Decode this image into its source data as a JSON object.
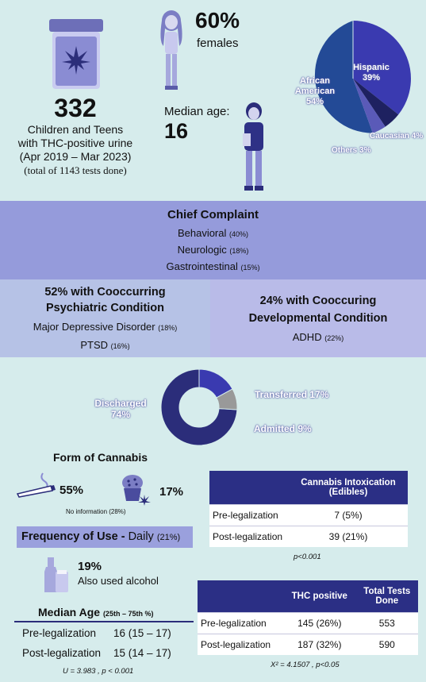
{
  "demographics": {
    "count": "332",
    "count_line1": "Children and Teens",
    "count_line2": "with THC-positive urine",
    "count_line3": "(Apr 2019 – Mar 2023)",
    "count_line4": "(total of 1143 tests done)",
    "female_pct": "60%",
    "female_label": "females",
    "median_age_label": "Median age:",
    "median_age_value": "16"
  },
  "race_pie": {
    "labels": {
      "african_american_1": "African",
      "african_american_2": "American",
      "african_american_pct": "54%",
      "hispanic": "Hispanic",
      "hispanic_pct": "39%",
      "caucasian": "Caucasian 4%",
      "others": "Others 3%"
    },
    "colors": {
      "african_american": "#234a96",
      "hispanic": "#3a3ab0",
      "caucasian": "#1e2160",
      "others": "#5a5ab8"
    }
  },
  "chief_complaint": {
    "title": "Chief Complaint",
    "items": [
      {
        "label": "Behavioral",
        "pct": "(40%)"
      },
      {
        "label": "Neurologic",
        "pct": "(18%)"
      },
      {
        "label": "Gastrointestinal",
        "pct": "(15%)"
      }
    ]
  },
  "psychiatric": {
    "title_line1": "52% with Cooccurring",
    "title_line2": "Psychiatric Condition",
    "items": [
      {
        "label": "Major Depressive Disorder",
        "pct": "(18%)"
      },
      {
        "label": "PTSD",
        "pct": "(16%)"
      }
    ]
  },
  "developmental": {
    "title_line1": "24% with Cooccuring",
    "title_line2": "Developmental Condition",
    "items": [
      {
        "label": "ADHD",
        "pct": "(22%)"
      }
    ]
  },
  "disposition": {
    "discharged_1": "Discharged",
    "discharged_2": "74%",
    "transferred": "Transferred 17%",
    "admitted": "Admitted 9%",
    "colors": {
      "discharged": "#2b2d7a",
      "transferred": "#3a3ab0",
      "admitted": "#999999"
    }
  },
  "chart_data": {
    "type": "pie",
    "categories": [
      "Discharged",
      "Transferred",
      "Admitted"
    ],
    "values": [
      74,
      17,
      9
    ]
  },
  "cannabis_form": {
    "title": "Form of Cannabis",
    "smoked_pct": "55%",
    "edible_pct": "17%",
    "no_info": "No information (28%)",
    "smoked_icon": "joint-icon",
    "edible_icon": "muffin-icon"
  },
  "frequency": {
    "label": "Frequency of Use - ",
    "value": "Daily",
    "pct": "(21%)"
  },
  "alcohol": {
    "pct": "19%",
    "label": "Also used alcohol",
    "icon": "beer-bottle-icon"
  },
  "median_age_table": {
    "title": "Median Age",
    "subtitle": "(25th – 75th %)",
    "rows": [
      {
        "label": "Pre-legalization",
        "value": "16 (15 – 17)"
      },
      {
        "label": "Post-legalization",
        "value": "15 (14 – 17)"
      }
    ],
    "stat": "U = 3.983 , p < 0.001"
  },
  "intoxication_table": {
    "header_1": "Cannabis Intoxication",
    "header_2": "(Edibles)",
    "rows": [
      {
        "label": "Pre-legalization",
        "value": "7 (5%)"
      },
      {
        "label": "Post-legalization",
        "value": "39 (21%)"
      }
    ],
    "stat": "p<0.001"
  },
  "thc_table": {
    "header_1": "THC positive",
    "header_2a": "Total Tests",
    "header_2b": "Done",
    "rows": [
      {
        "label": "Pre-legalization",
        "thc": "145 (26%)",
        "total": "553"
      },
      {
        "label": "Post-legalization",
        "thc": "187 (32%)",
        "total": "590"
      }
    ],
    "stat": "X² = 4.1507 , p<0.05"
  }
}
